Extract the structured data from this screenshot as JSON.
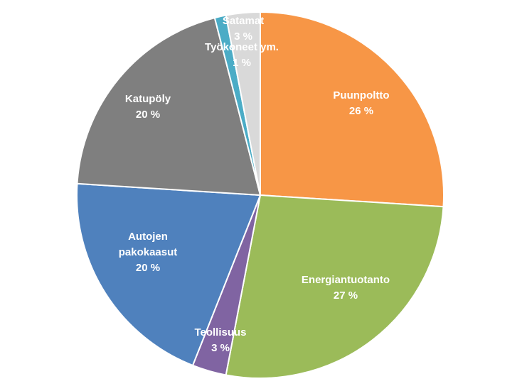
{
  "chart_data": {
    "type": "pie",
    "slices": [
      {
        "label": "Puunpoltto",
        "value": 26,
        "value_label": "26 %",
        "color": "#F79646"
      },
      {
        "label": "Energiantuotanto",
        "value": 27,
        "value_label": "27 %",
        "color": "#9BBB59"
      },
      {
        "label": "Teollisuus",
        "value": 3,
        "value_label": "3 %",
        "color": "#8064A2"
      },
      {
        "label": "Autojen pakokaasut",
        "value": 20,
        "value_label": "20 %",
        "color": "#4F81BD"
      },
      {
        "label": "Katupöly",
        "value": 20,
        "value_label": "20 %",
        "color": "#7F7F7F"
      },
      {
        "label": "Työkoneet ym.",
        "value": 1,
        "value_label": "1 %",
        "color": "#4BACC6"
      },
      {
        "label": "Satamat",
        "value": 3,
        "value_label": "3 %",
        "color": "#D9D9D9"
      }
    ]
  }
}
